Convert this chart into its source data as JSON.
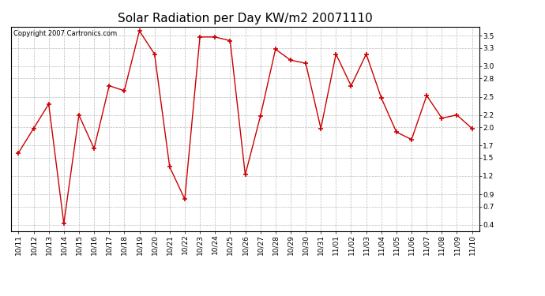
{
  "title": "Solar Radiation per Day KW/m2 20071110",
  "copyright": "Copyright 2007 Cartronics.com",
  "labels": [
    "10/11",
    "10/12",
    "10/13",
    "10/14",
    "10/15",
    "10/16",
    "10/17",
    "10/18",
    "10/19",
    "10/20",
    "10/21",
    "10/22",
    "10/23",
    "10/24",
    "10/25",
    "10/26",
    "10/27",
    "10/28",
    "10/29",
    "10/30",
    "10/31",
    "11/01",
    "11/02",
    "11/03",
    "11/04",
    "11/05",
    "11/06",
    "11/07",
    "11/08",
    "11/09",
    "11/10"
  ],
  "values": [
    1.58,
    1.98,
    2.38,
    0.42,
    2.2,
    1.65,
    2.68,
    2.6,
    3.58,
    3.2,
    1.35,
    0.82,
    3.48,
    3.48,
    3.42,
    1.22,
    2.18,
    3.28,
    3.1,
    3.05,
    1.98,
    3.2,
    2.68,
    3.2,
    2.48,
    1.92,
    1.8,
    2.52,
    2.15,
    2.2,
    1.98
  ],
  "line_color": "#cc0000",
  "marker": "+",
  "marker_size": 4,
  "bg_color": "#ffffff",
  "plot_bg_color": "#ffffff",
  "grid_color": "#bbbbbb",
  "yticks": [
    0.4,
    0.7,
    0.9,
    1.2,
    1.5,
    1.7,
    2.0,
    2.2,
    2.5,
    2.8,
    3.0,
    3.3,
    3.5
  ],
  "ylim": [
    0.3,
    3.65
  ],
  "title_fontsize": 11,
  "tick_fontsize": 6.5,
  "copyright_fontsize": 6.0
}
